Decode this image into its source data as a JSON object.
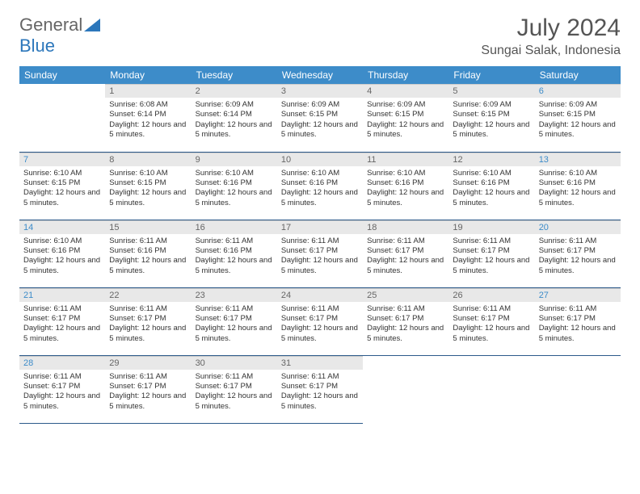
{
  "logo": {
    "part1": "General",
    "part2": "Blue"
  },
  "title": "July 2024",
  "location": "Sungai Salak, Indonesia",
  "colors": {
    "header_bg": "#3d8cc9",
    "header_text": "#ffffff",
    "daynum_bg": "#e8e8e8",
    "week_border": "#2c5a8a",
    "weekend_num": "#3d8cc9",
    "logo_accent": "#2c77bb"
  },
  "weekdays": [
    "Sunday",
    "Monday",
    "Tuesday",
    "Wednesday",
    "Thursday",
    "Friday",
    "Saturday"
  ],
  "start_offset": 1,
  "days": [
    {
      "n": 1,
      "sunrise": "6:08 AM",
      "sunset": "6:14 PM",
      "daylight": "12 hours and 5 minutes."
    },
    {
      "n": 2,
      "sunrise": "6:09 AM",
      "sunset": "6:14 PM",
      "daylight": "12 hours and 5 minutes."
    },
    {
      "n": 3,
      "sunrise": "6:09 AM",
      "sunset": "6:15 PM",
      "daylight": "12 hours and 5 minutes."
    },
    {
      "n": 4,
      "sunrise": "6:09 AM",
      "sunset": "6:15 PM",
      "daylight": "12 hours and 5 minutes."
    },
    {
      "n": 5,
      "sunrise": "6:09 AM",
      "sunset": "6:15 PM",
      "daylight": "12 hours and 5 minutes."
    },
    {
      "n": 6,
      "sunrise": "6:09 AM",
      "sunset": "6:15 PM",
      "daylight": "12 hours and 5 minutes."
    },
    {
      "n": 7,
      "sunrise": "6:10 AM",
      "sunset": "6:15 PM",
      "daylight": "12 hours and 5 minutes."
    },
    {
      "n": 8,
      "sunrise": "6:10 AM",
      "sunset": "6:15 PM",
      "daylight": "12 hours and 5 minutes."
    },
    {
      "n": 9,
      "sunrise": "6:10 AM",
      "sunset": "6:16 PM",
      "daylight": "12 hours and 5 minutes."
    },
    {
      "n": 10,
      "sunrise": "6:10 AM",
      "sunset": "6:16 PM",
      "daylight": "12 hours and 5 minutes."
    },
    {
      "n": 11,
      "sunrise": "6:10 AM",
      "sunset": "6:16 PM",
      "daylight": "12 hours and 5 minutes."
    },
    {
      "n": 12,
      "sunrise": "6:10 AM",
      "sunset": "6:16 PM",
      "daylight": "12 hours and 5 minutes."
    },
    {
      "n": 13,
      "sunrise": "6:10 AM",
      "sunset": "6:16 PM",
      "daylight": "12 hours and 5 minutes."
    },
    {
      "n": 14,
      "sunrise": "6:10 AM",
      "sunset": "6:16 PM",
      "daylight": "12 hours and 5 minutes."
    },
    {
      "n": 15,
      "sunrise": "6:11 AM",
      "sunset": "6:16 PM",
      "daylight": "12 hours and 5 minutes."
    },
    {
      "n": 16,
      "sunrise": "6:11 AM",
      "sunset": "6:16 PM",
      "daylight": "12 hours and 5 minutes."
    },
    {
      "n": 17,
      "sunrise": "6:11 AM",
      "sunset": "6:17 PM",
      "daylight": "12 hours and 5 minutes."
    },
    {
      "n": 18,
      "sunrise": "6:11 AM",
      "sunset": "6:17 PM",
      "daylight": "12 hours and 5 minutes."
    },
    {
      "n": 19,
      "sunrise": "6:11 AM",
      "sunset": "6:17 PM",
      "daylight": "12 hours and 5 minutes."
    },
    {
      "n": 20,
      "sunrise": "6:11 AM",
      "sunset": "6:17 PM",
      "daylight": "12 hours and 5 minutes."
    },
    {
      "n": 21,
      "sunrise": "6:11 AM",
      "sunset": "6:17 PM",
      "daylight": "12 hours and 5 minutes."
    },
    {
      "n": 22,
      "sunrise": "6:11 AM",
      "sunset": "6:17 PM",
      "daylight": "12 hours and 5 minutes."
    },
    {
      "n": 23,
      "sunrise": "6:11 AM",
      "sunset": "6:17 PM",
      "daylight": "12 hours and 5 minutes."
    },
    {
      "n": 24,
      "sunrise": "6:11 AM",
      "sunset": "6:17 PM",
      "daylight": "12 hours and 5 minutes."
    },
    {
      "n": 25,
      "sunrise": "6:11 AM",
      "sunset": "6:17 PM",
      "daylight": "12 hours and 5 minutes."
    },
    {
      "n": 26,
      "sunrise": "6:11 AM",
      "sunset": "6:17 PM",
      "daylight": "12 hours and 5 minutes."
    },
    {
      "n": 27,
      "sunrise": "6:11 AM",
      "sunset": "6:17 PM",
      "daylight": "12 hours and 5 minutes."
    },
    {
      "n": 28,
      "sunrise": "6:11 AM",
      "sunset": "6:17 PM",
      "daylight": "12 hours and 5 minutes."
    },
    {
      "n": 29,
      "sunrise": "6:11 AM",
      "sunset": "6:17 PM",
      "daylight": "12 hours and 5 minutes."
    },
    {
      "n": 30,
      "sunrise": "6:11 AM",
      "sunset": "6:17 PM",
      "daylight": "12 hours and 5 minutes."
    },
    {
      "n": 31,
      "sunrise": "6:11 AM",
      "sunset": "6:17 PM",
      "daylight": "12 hours and 5 minutes."
    }
  ],
  "labels": {
    "sunrise": "Sunrise:",
    "sunset": "Sunset:",
    "daylight": "Daylight:"
  }
}
